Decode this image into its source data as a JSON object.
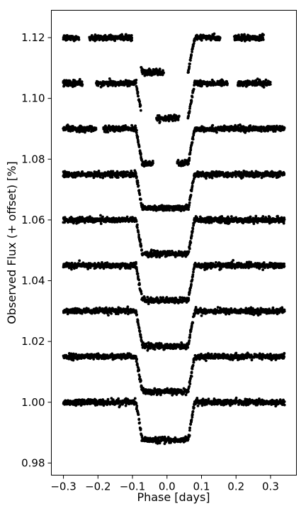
{
  "chart_data": {
    "type": "scatter",
    "title": "",
    "xlabel": "Phase [days]",
    "ylabel": "Observed Flux (+ offset) [%]",
    "xlim": [
      -0.335,
      0.375
    ],
    "ylim": [
      0.976,
      1.129
    ],
    "x_ticks": [
      -0.3,
      -0.2,
      -0.1,
      0.0,
      0.1,
      0.2,
      0.3
    ],
    "x_tick_labels": [
      "−0.3",
      "−0.2",
      "−0.1",
      "0.0",
      "0.1",
      "0.2",
      "0.3"
    ],
    "y_ticks": [
      0.98,
      1.0,
      1.02,
      1.04,
      1.06,
      1.08,
      1.1,
      1.12
    ],
    "y_tick_labels": [
      "0.98",
      "1.00",
      "1.02",
      "1.04",
      "1.06",
      "1.08",
      "1.10",
      "1.12"
    ],
    "grid": false,
    "legend": "none",
    "marker_color": "#000000",
    "series": [
      {
        "baseline": 1.0,
        "transit_depth": 0.0125,
        "x_start": -0.3,
        "x_end": 0.34,
        "ingress": -0.09,
        "egress": 0.08,
        "gaps": []
      },
      {
        "baseline": 1.015,
        "transit_depth": 0.0115,
        "x_start": -0.3,
        "x_end": 0.34,
        "ingress": -0.09,
        "egress": 0.08,
        "gaps": []
      },
      {
        "baseline": 1.03,
        "transit_depth": 0.0115,
        "x_start": -0.3,
        "x_end": 0.34,
        "ingress": -0.09,
        "egress": 0.08,
        "gaps": []
      },
      {
        "baseline": 1.045,
        "transit_depth": 0.0115,
        "x_start": -0.3,
        "x_end": 0.34,
        "ingress": -0.09,
        "egress": 0.08,
        "gaps": []
      },
      {
        "baseline": 1.06,
        "transit_depth": 0.0112,
        "x_start": -0.3,
        "x_end": 0.34,
        "ingress": -0.09,
        "egress": 0.08,
        "gaps": []
      },
      {
        "baseline": 1.075,
        "transit_depth": 0.0112,
        "x_start": -0.3,
        "x_end": 0.34,
        "ingress": -0.09,
        "egress": 0.08,
        "gaps": []
      },
      {
        "baseline": 1.09,
        "transit_depth": 0.0115,
        "x_start": -0.3,
        "x_end": 0.34,
        "ingress": -0.09,
        "egress": 0.08,
        "gaps": [
          [
            -0.205,
            -0.185
          ],
          [
            -0.04,
            0.03
          ]
        ]
      },
      {
        "baseline": 1.105,
        "transit_depth": 0.0115,
        "x_start": -0.3,
        "x_end": 0.3,
        "ingress": -0.09,
        "egress": 0.08,
        "gaps": [
          [
            -0.245,
            -0.205
          ],
          [
            -0.075,
            -0.03
          ],
          [
            0.035,
            0.06
          ],
          [
            0.175,
            0.205
          ]
        ]
      },
      {
        "baseline": 1.12,
        "transit_depth": 0.0115,
        "x_start": -0.3,
        "x_end": 0.28,
        "ingress": -0.09,
        "egress": 0.08,
        "gaps": [
          [
            -0.255,
            -0.225
          ],
          [
            -0.1,
            -0.075
          ],
          [
            -0.01,
            0.06
          ],
          [
            0.155,
            0.195
          ]
        ]
      }
    ]
  }
}
